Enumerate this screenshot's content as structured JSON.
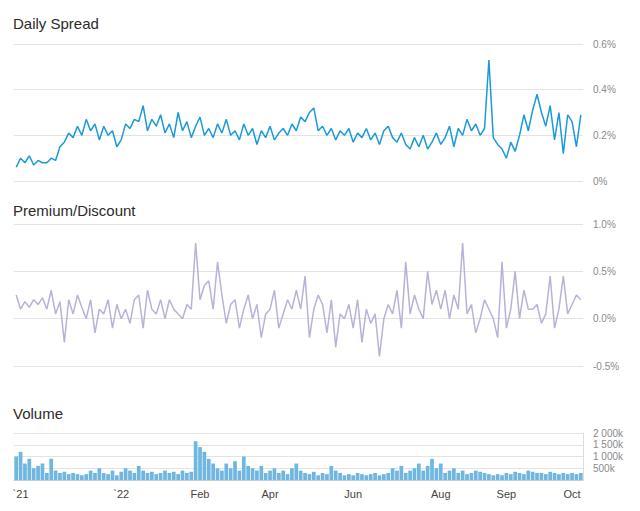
{
  "chart_data": [
    {
      "type": "line",
      "title": "Daily Spread",
      "color": "#1a9ad6",
      "grid": true,
      "tick_labels": "y",
      "categories": [
        null,
        "`21",
        null,
        null,
        null,
        null,
        null,
        null,
        null,
        null,
        null,
        null,
        null,
        null,
        null,
        null,
        null,
        null,
        null,
        null,
        null,
        null,
        null,
        null,
        "`22",
        null,
        null,
        null,
        null,
        null,
        null,
        null,
        null,
        null,
        null,
        null,
        null,
        null,
        null,
        null,
        null,
        null,
        "Feb",
        null,
        null,
        null,
        null,
        null,
        null,
        null,
        null,
        null,
        null,
        null,
        null,
        null,
        null,
        null,
        "Apr",
        null,
        null,
        null,
        null,
        null,
        null,
        null,
        null,
        null,
        null,
        null,
        null,
        null,
        null,
        null,
        null,
        null,
        null,
        "Jun",
        null,
        null,
        null,
        null,
        null,
        null,
        null,
        null,
        null,
        null,
        null,
        null,
        null,
        null,
        null,
        null,
        null,
        null,
        null,
        "Aug",
        null,
        null,
        null,
        null,
        null,
        null,
        null,
        null,
        null,
        null,
        null,
        null,
        null,
        null,
        "Sep",
        null,
        null,
        null,
        null,
        null,
        null,
        null,
        null,
        null,
        null,
        null,
        null,
        null,
        null,
        "Oct",
        null,
        null
      ],
      "values": [
        0.06,
        0.1,
        0.08,
        0.11,
        0.07,
        0.09,
        0.08,
        0.08,
        0.1,
        0.09,
        0.15,
        0.17,
        0.21,
        0.19,
        0.24,
        0.2,
        0.27,
        0.22,
        0.25,
        0.18,
        0.24,
        0.2,
        0.22,
        0.15,
        0.18,
        0.25,
        0.23,
        0.27,
        0.26,
        0.33,
        0.22,
        0.27,
        0.24,
        0.29,
        0.21,
        0.25,
        0.19,
        0.3,
        0.22,
        0.26,
        0.19,
        0.24,
        0.28,
        0.2,
        0.23,
        0.19,
        0.25,
        0.21,
        0.27,
        0.2,
        0.22,
        0.18,
        0.25,
        0.2,
        0.23,
        0.16,
        0.22,
        0.19,
        0.24,
        0.18,
        0.21,
        0.23,
        0.2,
        0.25,
        0.22,
        0.28,
        0.26,
        0.3,
        0.32,
        0.22,
        0.24,
        0.2,
        0.23,
        0.18,
        0.22,
        0.2,
        0.23,
        0.17,
        0.21,
        0.19,
        0.23,
        0.18,
        0.21,
        0.16,
        0.22,
        0.24,
        0.19,
        0.17,
        0.21,
        0.16,
        0.14,
        0.19,
        0.15,
        0.2,
        0.14,
        0.17,
        0.21,
        0.16,
        0.19,
        0.24,
        0.15,
        0.23,
        0.2,
        0.27,
        0.22,
        0.25,
        0.2,
        0.23,
        0.53,
        0.19,
        0.16,
        0.14,
        0.1,
        0.17,
        0.13,
        0.2,
        0.29,
        0.22,
        0.31,
        0.38,
        0.3,
        0.24,
        0.33,
        0.18,
        0.3,
        0.12,
        0.29,
        0.26,
        0.15,
        0.29
      ],
      "ylim": [
        0,
        0.6
      ],
      "yticks": [
        {
          "value": 0,
          "label": "0%"
        },
        {
          "value": 0.2,
          "label": "0.2%"
        },
        {
          "value": 0.4,
          "label": "0.4%"
        },
        {
          "value": 0.6,
          "label": "0.6%"
        }
      ]
    },
    {
      "type": "line",
      "title": "Premium/Discount",
      "color": "#b8b2d8",
      "grid": true,
      "tick_labels": "y",
      "categories": [
        null,
        "`21",
        null,
        null,
        null,
        null,
        null,
        null,
        null,
        null,
        null,
        null,
        null,
        null,
        null,
        null,
        null,
        null,
        null,
        null,
        null,
        null,
        null,
        null,
        "`22",
        null,
        null,
        null,
        null,
        null,
        null,
        null,
        null,
        null,
        null,
        null,
        null,
        null,
        null,
        null,
        null,
        null,
        "Feb",
        null,
        null,
        null,
        null,
        null,
        null,
        null,
        null,
        null,
        null,
        null,
        null,
        null,
        null,
        null,
        "Apr",
        null,
        null,
        null,
        null,
        null,
        null,
        null,
        null,
        null,
        null,
        null,
        null,
        null,
        null,
        null,
        null,
        null,
        null,
        "Jun",
        null,
        null,
        null,
        null,
        null,
        null,
        null,
        null,
        null,
        null,
        null,
        null,
        null,
        null,
        null,
        null,
        null,
        null,
        null,
        "Aug",
        null,
        null,
        null,
        null,
        null,
        null,
        null,
        null,
        null,
        null,
        null,
        null,
        null,
        null,
        "Sep",
        null,
        null,
        null,
        null,
        null,
        null,
        null,
        null,
        null,
        null,
        null,
        null,
        null,
        null,
        "Oct",
        null,
        null
      ],
      "values": [
        0.25,
        0.1,
        0.18,
        0.12,
        0.2,
        0.15,
        0.22,
        0.1,
        0.3,
        0.05,
        0.18,
        -0.25,
        0.2,
        0.05,
        0.25,
        0.12,
        0.0,
        0.2,
        -0.15,
        0.1,
        0.05,
        0.2,
        -0.1,
        0.15,
        0.0,
        0.1,
        -0.05,
        0.2,
        0.25,
        -0.1,
        0.3,
        0.1,
        0.05,
        0.2,
        0.0,
        0.2,
        0.1,
        0.05,
        0.0,
        0.15,
        0.1,
        0.8,
        0.2,
        0.35,
        0.4,
        0.1,
        0.6,
        0.25,
        -0.05,
        0.15,
        0.2,
        -0.1,
        0.1,
        0.25,
        0.0,
        0.15,
        -0.2,
        0.05,
        0.1,
        0.3,
        -0.1,
        0.05,
        0.2,
        0.1,
        0.3,
        0.1,
        0.45,
        -0.2,
        0.1,
        0.25,
        0.15,
        -0.15,
        0.2,
        -0.3,
        0.05,
        0.0,
        0.15,
        -0.1,
        0.2,
        -0.25,
        0.1,
        -0.05,
        0.05,
        -0.4,
        0.0,
        0.15,
        0.05,
        0.3,
        -0.1,
        0.6,
        0.05,
        0.25,
        0.1,
        0.0,
        0.5,
        0.15,
        0.3,
        0.1,
        0.3,
        0.0,
        0.25,
        0.1,
        0.8,
        0.05,
        0.15,
        -0.15,
        0.0,
        0.2,
        0.1,
        0.0,
        -0.2,
        0.6,
        -0.1,
        0.1,
        0.5,
        0.0,
        0.3,
        0.1,
        0.1,
        0.15,
        -0.05,
        0.05,
        0.45,
        -0.1,
        0.1,
        0.45,
        0.05,
        0.15,
        0.25,
        0.2
      ],
      "ylim": [
        -0.5,
        1.0
      ],
      "yticks": [
        {
          "value": -0.5,
          "label": "-0.5%"
        },
        {
          "value": 0,
          "label": "0.0%"
        },
        {
          "value": 0.5,
          "label": "0.5%"
        },
        {
          "value": 1.0,
          "label": "1.0%"
        }
      ]
    },
    {
      "type": "bar",
      "title": "Volume",
      "color": "#6fb7e0",
      "grid": true,
      "categories": [
        null,
        "`21",
        null,
        null,
        null,
        null,
        null,
        null,
        null,
        null,
        null,
        null,
        null,
        null,
        null,
        null,
        null,
        null,
        null,
        null,
        null,
        null,
        null,
        null,
        "`22",
        null,
        null,
        null,
        null,
        null,
        null,
        null,
        null,
        null,
        null,
        null,
        null,
        null,
        null,
        null,
        null,
        null,
        "Feb",
        null,
        null,
        null,
        null,
        null,
        null,
        null,
        null,
        null,
        null,
        null,
        null,
        null,
        null,
        null,
        "Apr",
        null,
        null,
        null,
        null,
        null,
        null,
        null,
        null,
        null,
        null,
        null,
        null,
        null,
        null,
        null,
        null,
        null,
        null,
        "Jun",
        null,
        null,
        null,
        null,
        null,
        null,
        null,
        null,
        null,
        null,
        null,
        null,
        null,
        null,
        null,
        null,
        null,
        null,
        null,
        "Aug",
        null,
        null,
        null,
        null,
        null,
        null,
        null,
        null,
        null,
        null,
        null,
        null,
        null,
        null,
        "Sep",
        null,
        null,
        null,
        null,
        null,
        null,
        null,
        null,
        null,
        null,
        null,
        null,
        null,
        null,
        "Oct",
        null,
        null
      ],
      "values": [
        1000000,
        1200000,
        700000,
        900000,
        500000,
        600000,
        700000,
        300000,
        900000,
        400000,
        300000,
        350000,
        250000,
        300000,
        250000,
        200000,
        250000,
        400000,
        300000,
        500000,
        300000,
        250000,
        400000,
        200000,
        350000,
        500000,
        400000,
        300000,
        600000,
        400000,
        300000,
        350000,
        250000,
        300000,
        400000,
        300000,
        350000,
        250000,
        400000,
        300000,
        350000,
        1650000,
        1400000,
        1200000,
        900000,
        700000,
        500000,
        400000,
        700000,
        500000,
        800000,
        400000,
        1000000,
        600000,
        500000,
        400000,
        600000,
        300000,
        400000,
        500000,
        300000,
        400000,
        250000,
        500000,
        700000,
        400000,
        300000,
        250000,
        350000,
        200000,
        300000,
        250000,
        600000,
        400000,
        300000,
        200000,
        250000,
        200000,
        300000,
        250000,
        200000,
        250000,
        300000,
        200000,
        250000,
        300000,
        500000,
        400000,
        600000,
        300000,
        400000,
        500000,
        700000,
        400000,
        600000,
        900000,
        500000,
        700000,
        300000,
        400000,
        500000,
        300000,
        400000,
        250000,
        300000,
        400000,
        350000,
        300000,
        250000,
        200000,
        250000,
        200000,
        300000,
        250000,
        350000,
        300000,
        250000,
        400000,
        350000,
        300000,
        300000,
        250000,
        350000,
        300000,
        250000,
        300000,
        250000,
        300000,
        250000,
        300000
      ],
      "ylim": [
        0,
        2000000
      ],
      "yticks": [
        {
          "value": 500000,
          "label": "500k"
        },
        {
          "value": 1000000,
          "label": "1 000k"
        },
        {
          "value": 1500000,
          "label": "1 500k"
        },
        {
          "value": 2000000,
          "label": "2 000k"
        }
      ]
    }
  ]
}
